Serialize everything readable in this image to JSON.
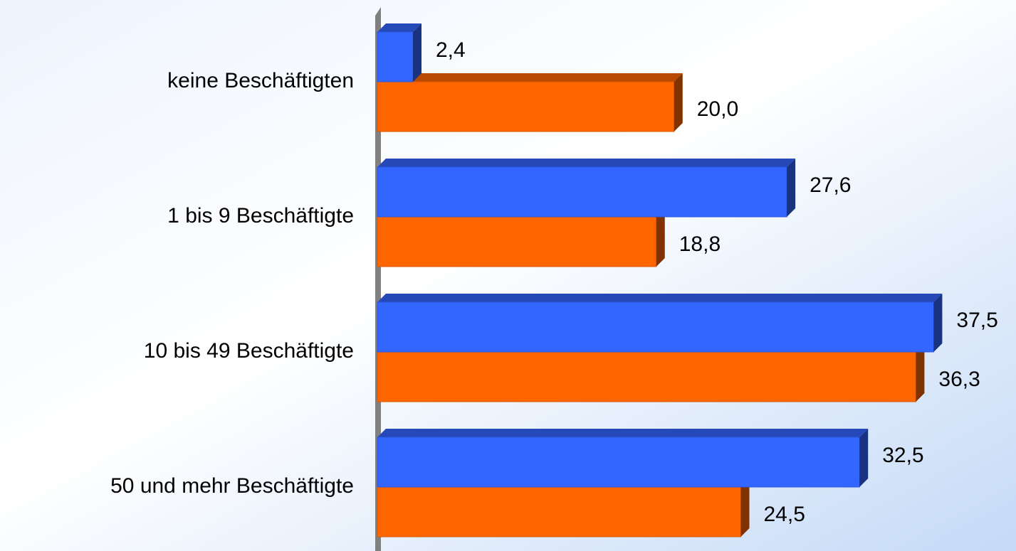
{
  "chart_data": {
    "type": "bar",
    "orientation": "horizontal",
    "categories": [
      "keine Beschäftigten",
      "1 bis 9 Beschäftigte",
      "10 bis 49 Beschäftigte",
      "50 und mehr Beschäftigte"
    ],
    "series": [
      {
        "color": "#3366ff",
        "values": [
          2.4,
          27.6,
          37.5,
          32.5
        ],
        "value_labels": [
          "2,4",
          "27,6",
          "37,5",
          "32,5"
        ]
      },
      {
        "color": "#ff6600",
        "values": [
          20.0,
          18.8,
          36.3,
          24.5
        ],
        "value_labels": [
          "20,0",
          "18,8",
          "36,3",
          "24,5"
        ]
      }
    ],
    "xlim": [
      0,
      43
    ]
  }
}
